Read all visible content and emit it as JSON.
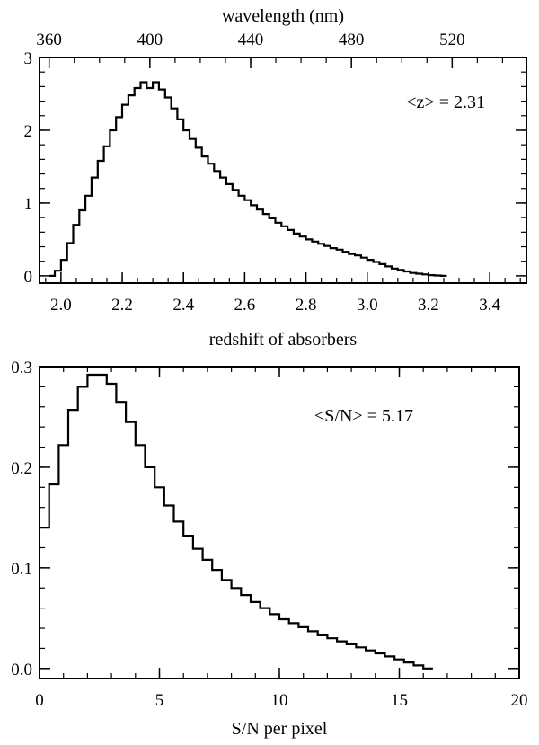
{
  "chart_data": [
    {
      "type": "histogram",
      "xlabel": "redshift of absorbers",
      "ylabel": "",
      "xlim": [
        1.93,
        3.52
      ],
      "ylim": [
        -0.1,
        3.0
      ],
      "xticks": [
        "2.0",
        "2.2",
        "2.4",
        "2.6",
        "2.8",
        "3.0",
        "3.2",
        "3.4"
      ],
      "xtick_values": [
        2.0,
        2.2,
        2.4,
        2.6,
        2.8,
        3.0,
        3.2,
        3.4
      ],
      "yticks": [
        "0",
        "1",
        "2",
        "3"
      ],
      "ytick_values": [
        0,
        1,
        2,
        3
      ],
      "top_axis": {
        "label": "wavelength (nm)",
        "ticks": [
          "360",
          "400",
          "440",
          "480",
          "520"
        ],
        "tick_values": [
          360,
          400,
          440,
          480,
          520
        ]
      },
      "annotation": "<z> = 2.31",
      "bin_width": 0.02,
      "bin_edges_start": 1.96,
      "values": [
        0.0,
        0.07,
        0.22,
        0.45,
        0.7,
        0.9,
        1.1,
        1.35,
        1.58,
        1.78,
        2.0,
        2.18,
        2.35,
        2.48,
        2.58,
        2.66,
        2.58,
        2.66,
        2.56,
        2.45,
        2.3,
        2.15,
        2.0,
        1.88,
        1.76,
        1.64,
        1.54,
        1.44,
        1.35,
        1.26,
        1.18,
        1.1,
        1.04,
        0.97,
        0.91,
        0.85,
        0.79,
        0.73,
        0.68,
        0.63,
        0.58,
        0.54,
        0.5,
        0.47,
        0.44,
        0.41,
        0.38,
        0.36,
        0.33,
        0.3,
        0.28,
        0.25,
        0.22,
        0.19,
        0.16,
        0.13,
        0.1,
        0.08,
        0.06,
        0.04,
        0.03,
        0.02,
        0.01,
        0.005,
        0.0
      ]
    },
    {
      "type": "histogram",
      "xlabel": "S/N per pixel",
      "ylabel": "",
      "xlim": [
        0,
        20
      ],
      "ylim": [
        -0.01,
        0.3
      ],
      "xticks": [
        "0",
        "5",
        "10",
        "15",
        "20"
      ],
      "xtick_values": [
        0,
        5,
        10,
        15,
        20
      ],
      "yticks": [
        "0.0",
        "0.1",
        "0.2",
        "0.3"
      ],
      "ytick_values": [
        0.0,
        0.1,
        0.2,
        0.3
      ],
      "annotation": "<S/N> = 5.17",
      "bin_width": 0.4,
      "bin_edges_start": 0,
      "values": [
        0.14,
        0.183,
        0.222,
        0.257,
        0.28,
        0.292,
        0.292,
        0.283,
        0.265,
        0.245,
        0.222,
        0.2,
        0.18,
        0.162,
        0.146,
        0.132,
        0.119,
        0.108,
        0.098,
        0.088,
        0.08,
        0.073,
        0.066,
        0.06,
        0.054,
        0.049,
        0.045,
        0.041,
        0.037,
        0.033,
        0.03,
        0.027,
        0.024,
        0.021,
        0.018,
        0.015,
        0.012,
        0.009,
        0.006,
        0.003,
        0.0
      ]
    }
  ]
}
